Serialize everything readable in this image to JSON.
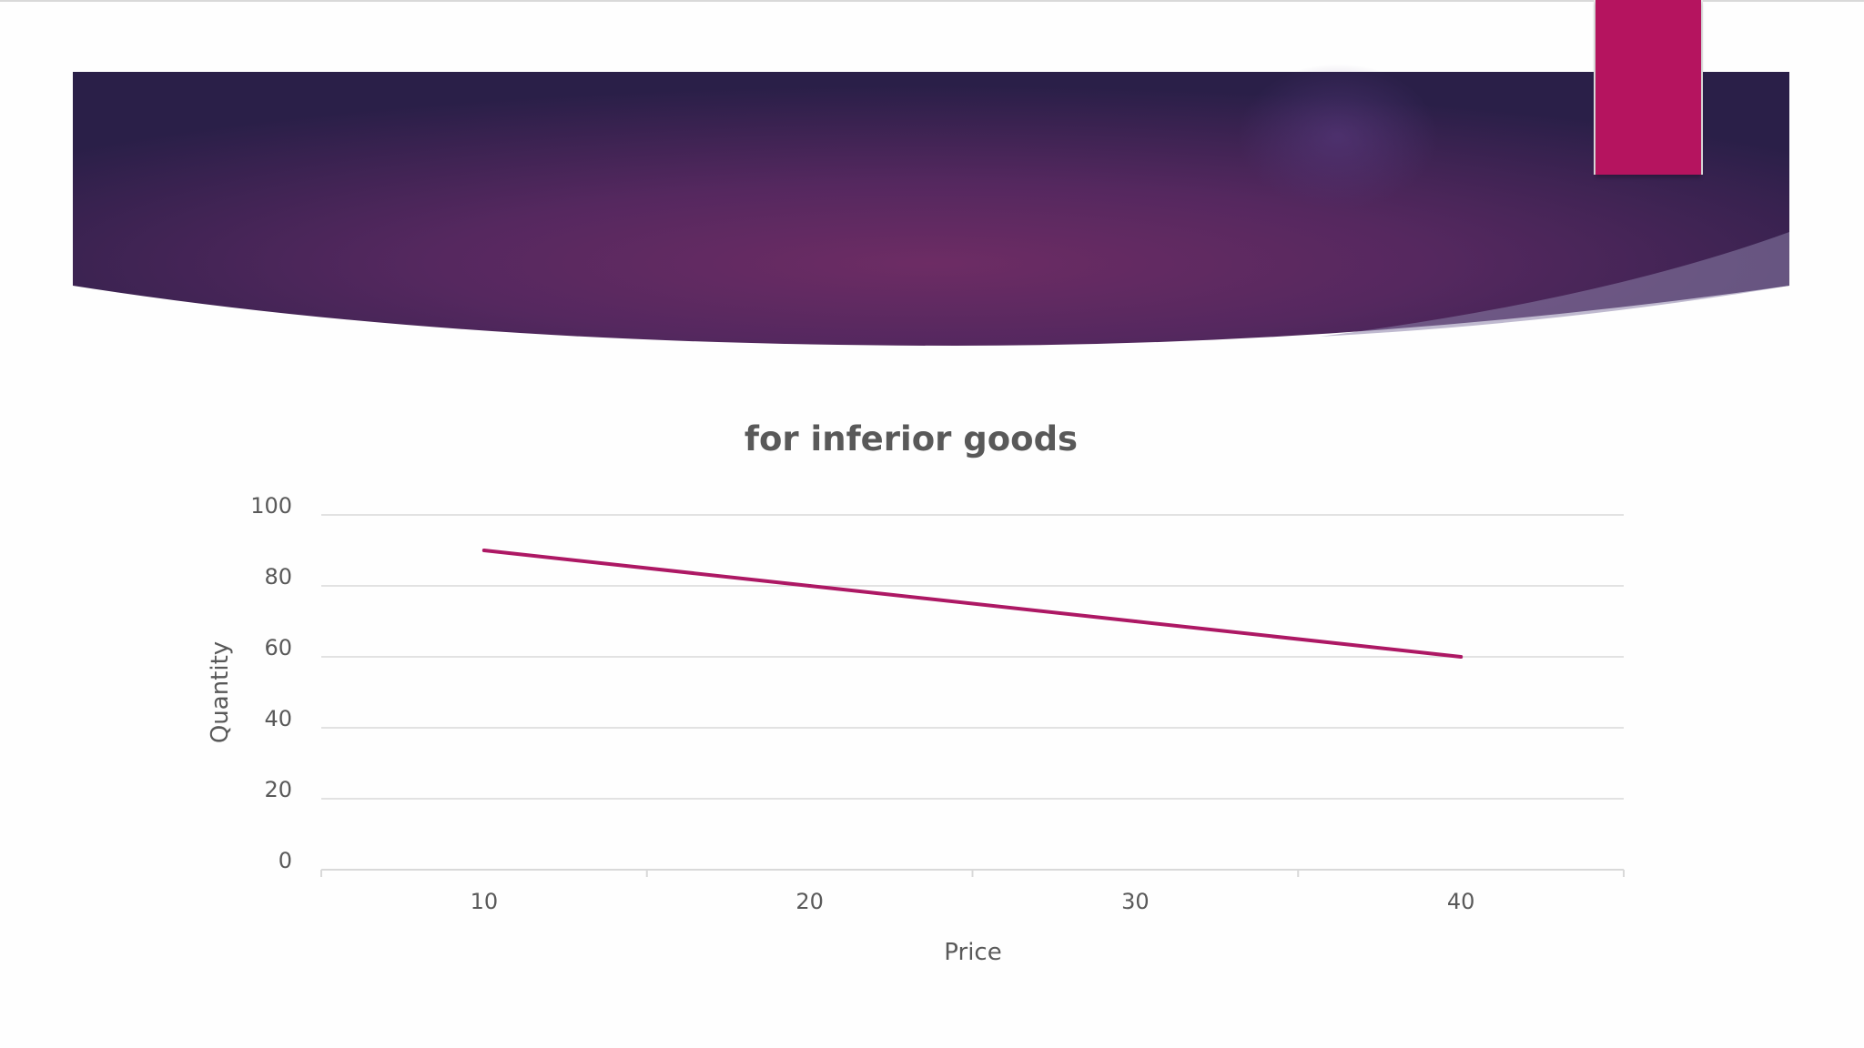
{
  "theme": {
    "banner_colors": [
      "#2a1f48",
      "#6d2c64",
      "#b5145f"
    ],
    "accent": "#b5145f",
    "line_color": "#ad1864",
    "grid_color": "#d9d9d9",
    "text_color": "#595959",
    "title_color": "#595959"
  },
  "chart_data": {
    "type": "line",
    "title": "for inferior goods",
    "xlabel": "Price",
    "ylabel": "Quantity",
    "categories": [
      "10",
      "20",
      "30",
      "40"
    ],
    "series": [
      {
        "values": [
          90,
          80,
          70,
          60
        ]
      }
    ],
    "ylim": [
      0,
      100
    ],
    "yticks": [
      "0",
      "20",
      "40",
      "60",
      "80",
      "100"
    ],
    "grid": true,
    "legend": "none"
  }
}
